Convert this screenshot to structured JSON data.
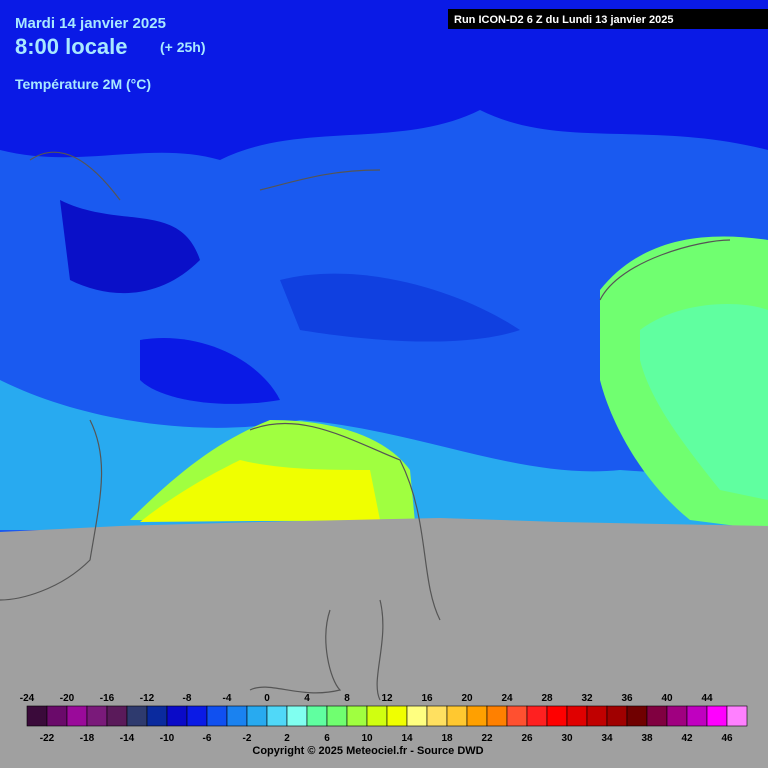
{
  "header": {
    "date": "Mardi 14 janvier 2025",
    "time": "8:00 locale",
    "lead": "(+ 25h)",
    "variable": "Température 2M (°C)",
    "run": "Run ICON-D2 6 Z du Lundi 13 janvier 2025"
  },
  "legend": {
    "top_labels": [
      -24,
      -20,
      -16,
      -12,
      -8,
      -4,
      0,
      4,
      8,
      12,
      16,
      20,
      24,
      28,
      32,
      36,
      40,
      44
    ],
    "bottom_labels": [
      -22,
      -18,
      -14,
      -10,
      -6,
      -2,
      2,
      6,
      10,
      14,
      18,
      22,
      26,
      30,
      34,
      38,
      42,
      46
    ],
    "colors": [
      "#3a0a3a",
      "#6a0a6a",
      "#9a0a9a",
      "#7a1a7a",
      "#5a1a5a",
      "#2e3a6e",
      "#0a2a9e",
      "#0a0ac8",
      "#0a1ae6",
      "#1050f0",
      "#1a82f0",
      "#28aaf0",
      "#50d8f8",
      "#80fff0",
      "#60ffa0",
      "#70ff70",
      "#a0ff40",
      "#d0ff10",
      "#f0ff00",
      "#ffff80",
      "#ffe060",
      "#ffc830",
      "#ffa000",
      "#ff8000",
      "#ff5030",
      "#ff2020",
      "#ff0000",
      "#e00000",
      "#c00000",
      "#a00000",
      "#700000",
      "#800040",
      "#a00080",
      "#c000c0",
      "#ff00ff",
      "#ff80ff"
    ]
  },
  "footer": {
    "copyright": "Copyright © 2025 Meteociel.fr - Source DWD"
  }
}
